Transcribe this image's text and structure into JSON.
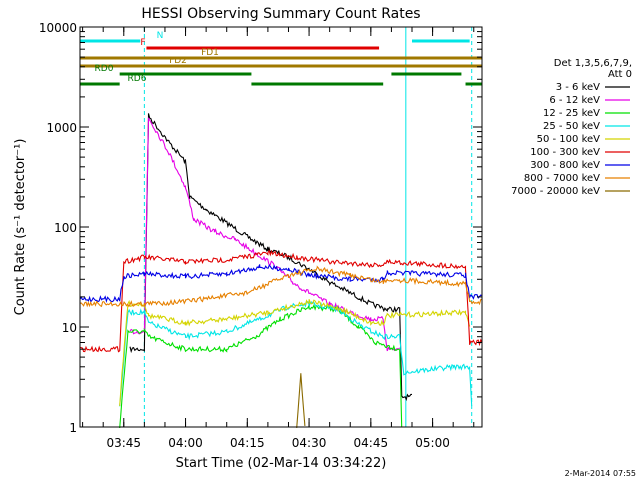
{
  "chart_data": {
    "type": "line",
    "title": "HESSI Observing Summary Count Rates",
    "ylabel": "Count Rate (s⁻¹ detector⁻¹)",
    "xlabel": "Start Time (02-Mar-14 03:34:22)",
    "y_scale": "log",
    "ylim": [
      1,
      10000
    ],
    "xlim": [
      "03:34:22",
      "05:12:00"
    ],
    "y_ticks": [
      {
        "v": 1,
        "label": "1"
      },
      {
        "v": 10,
        "label": "10"
      },
      {
        "v": 100,
        "label": "100"
      },
      {
        "v": 1000,
        "label": "1000"
      },
      {
        "v": 10000,
        "label": "10000"
      }
    ],
    "x_ticks": [
      {
        "t": "03:45",
        "label": "03:45"
      },
      {
        "t": "04:00",
        "label": "04:00"
      },
      {
        "t": "04:15",
        "label": "04:15"
      },
      {
        "t": "04:30",
        "label": "04:30"
      },
      {
        "t": "04:45",
        "label": "04:45"
      },
      {
        "t": "05:00",
        "label": "05:00"
      }
    ],
    "legend": {
      "header": [
        "Det 1,3,5,6,7,9,",
        "Att 0"
      ],
      "placement": "right",
      "entries": [
        {
          "label": "3 - 6 keV",
          "color": "#000000"
        },
        {
          "label": "6 - 12 keV",
          "color": "#e600e6"
        },
        {
          "label": "12 - 25 keV",
          "color": "#00e000"
        },
        {
          "label": "25 - 50 keV",
          "color": "#00e6e6"
        },
        {
          "label": "50 - 100 keV",
          "color": "#d4d400"
        },
        {
          "label": "100 - 300 keV",
          "color": "#e00000"
        },
        {
          "label": "300 - 800 keV",
          "color": "#0000e6"
        },
        {
          "label": "800 - 7000 keV",
          "color": "#e68000"
        },
        {
          "label": "7000 - 20000 keV",
          "color": "#8a6a00"
        }
      ]
    },
    "series": [
      {
        "name": "3 - 6 keV",
        "color": "#000000",
        "points": [
          [
            "03:46:30",
            6
          ],
          [
            "03:50:00",
            6
          ],
          [
            "03:51:00",
            1300
          ],
          [
            "03:56:00",
            700
          ],
          [
            "04:00:00",
            450
          ],
          [
            "04:01:00",
            200
          ],
          [
            "04:05:00",
            150
          ],
          [
            "04:10:00",
            110
          ],
          [
            "04:15:00",
            80
          ],
          [
            "04:20:00",
            60
          ],
          [
            "04:25:00",
            50
          ],
          [
            "04:30:00",
            38
          ],
          [
            "04:35:00",
            28
          ],
          [
            "04:40:00",
            22
          ],
          [
            "04:45:00",
            17
          ],
          [
            "04:49:00",
            15
          ],
          [
            "04:52:00",
            15
          ],
          [
            "04:52:30",
            2
          ],
          [
            "04:55:00",
            2
          ]
        ]
      },
      {
        "name": "6 - 12 keV",
        "color": "#e600e6",
        "points": [
          [
            "03:46:30",
            9
          ],
          [
            "03:50:00",
            9
          ],
          [
            "03:51:00",
            1250
          ],
          [
            "03:56:00",
            550
          ],
          [
            "04:00:00",
            250
          ],
          [
            "04:02:00",
            120
          ],
          [
            "04:07:00",
            90
          ],
          [
            "04:12:00",
            75
          ],
          [
            "04:17:00",
            55
          ],
          [
            "04:22:00",
            40
          ],
          [
            "04:26:00",
            28
          ],
          [
            "04:30:00",
            22
          ],
          [
            "04:35:00",
            17
          ],
          [
            "04:40:00",
            14
          ],
          [
            "04:45:00",
            12
          ],
          [
            "04:48:00",
            12
          ],
          [
            "04:49:00",
            6
          ],
          [
            "04:52:00",
            6
          ]
        ]
      },
      {
        "name": "12 - 25 keV",
        "color": "#00e000",
        "points": [
          [
            "03:44:00",
            1
          ],
          [
            "03:46:00",
            9
          ],
          [
            "03:50:00",
            9
          ],
          [
            "03:51:00",
            8
          ],
          [
            "04:00:00",
            6
          ],
          [
            "04:10:00",
            6
          ],
          [
            "04:17:00",
            8
          ],
          [
            "04:23:00",
            12
          ],
          [
            "04:30:00",
            16
          ],
          [
            "04:37:00",
            15
          ],
          [
            "04:42:00",
            10
          ],
          [
            "04:46:00",
            7
          ],
          [
            "04:52:00",
            6
          ],
          [
            "04:52:30",
            1
          ]
        ]
      },
      {
        "name": "25 - 50 keV",
        "color": "#00e6e6",
        "points": [
          [
            "03:44:00",
            1.6
          ],
          [
            "03:46:00",
            14
          ],
          [
            "03:50:00",
            14
          ],
          [
            "03:51:00",
            11
          ],
          [
            "04:00:00",
            8
          ],
          [
            "04:10:00",
            9
          ],
          [
            "04:18:00",
            12
          ],
          [
            "04:25:00",
            16
          ],
          [
            "04:30:00",
            17
          ],
          [
            "04:37:00",
            15
          ],
          [
            "04:43:00",
            10
          ],
          [
            "04:48:00",
            8
          ],
          [
            "04:52:00",
            8
          ],
          [
            "04:53:00",
            3.5
          ],
          [
            "05:05:00",
            4
          ],
          [
            "05:09:00",
            4
          ],
          [
            "05:09:30",
            1.6
          ]
        ]
      },
      {
        "name": "50 - 100 keV",
        "color": "#d4d400",
        "points": [
          [
            "03:44:00",
            1.7
          ],
          [
            "03:46:00",
            17
          ],
          [
            "03:50:00",
            17
          ],
          [
            "03:51:00",
            13
          ],
          [
            "04:00:00",
            11
          ],
          [
            "04:10:00",
            12
          ],
          [
            "04:20:00",
            14
          ],
          [
            "04:30:00",
            18
          ],
          [
            "04:38:00",
            15
          ],
          [
            "04:45:00",
            11
          ],
          [
            "04:48:00",
            11
          ],
          [
            "04:49:00",
            13
          ],
          [
            "05:08:00",
            14
          ],
          [
            "05:09:00",
            10
          ]
        ]
      },
      {
        "name": "100 - 300 keV",
        "color": "#e00000",
        "points": [
          [
            "03:34:22",
            6
          ],
          [
            "03:44:00",
            6
          ],
          [
            "03:45:00",
            45
          ],
          [
            "03:50:00",
            50
          ],
          [
            "04:00:00",
            45
          ],
          [
            "04:10:00",
            47
          ],
          [
            "04:20:00",
            55
          ],
          [
            "04:27:00",
            50
          ],
          [
            "04:35:00",
            45
          ],
          [
            "04:45:00",
            42
          ],
          [
            "04:48:00",
            42
          ],
          [
            "04:49:00",
            45
          ],
          [
            "05:08:00",
            40
          ],
          [
            "05:09:00",
            7
          ],
          [
            "05:12:00",
            7
          ]
        ]
      },
      {
        "name": "300 - 800 keV",
        "color": "#0000e6",
        "points": [
          [
            "03:34:22",
            19
          ],
          [
            "03:44:00",
            19
          ],
          [
            "03:45:00",
            32
          ],
          [
            "03:50:00",
            34
          ],
          [
            "04:00:00",
            32
          ],
          [
            "04:10:00",
            34
          ],
          [
            "04:18:00",
            40
          ],
          [
            "04:25:00",
            38
          ],
          [
            "04:30:00",
            33
          ],
          [
            "04:40:00",
            30
          ],
          [
            "04:48:00",
            30
          ],
          [
            "04:49:00",
            35
          ],
          [
            "05:08:00",
            33
          ],
          [
            "05:09:00",
            20
          ],
          [
            "05:12:00",
            20
          ]
        ]
      },
      {
        "name": "800 - 7000 keV",
        "color": "#e68000",
        "points": [
          [
            "03:34:22",
            17
          ],
          [
            "03:50:00",
            17
          ],
          [
            "04:00:00",
            18
          ],
          [
            "04:15:00",
            22
          ],
          [
            "04:25:00",
            33
          ],
          [
            "04:32:00",
            38
          ],
          [
            "04:40:00",
            33
          ],
          [
            "04:48:00",
            28
          ],
          [
            "04:49:00",
            30
          ],
          [
            "05:08:00",
            27
          ],
          [
            "05:09:00",
            18
          ],
          [
            "05:12:00",
            18
          ]
        ]
      },
      {
        "name": "7000 - 20000 keV",
        "color": "#8a6a00",
        "points": [
          [
            "04:27:00",
            1
          ],
          [
            "04:28:00",
            3.5
          ],
          [
            "04:29:00",
            1
          ]
        ]
      }
    ],
    "observing_flags": [
      {
        "label": "N",
        "color": "#00e6e6",
        "segments": [
          [
            "03:34:22",
            "03:49:00"
          ],
          [
            "04:55:00",
            "05:09:00"
          ]
        ]
      },
      {
        "label": "F",
        "color": "#e00000",
        "segments": [
          [
            "03:50:30",
            "04:47:00"
          ]
        ]
      },
      {
        "label": "FD1",
        "color": "#a07800",
        "segments": [
          [
            "03:34:22",
            "05:12:00"
          ]
        ]
      },
      {
        "label": "FD2",
        "color": "#a07800",
        "segments": [
          [
            "03:34:22",
            "05:12:00"
          ]
        ]
      },
      {
        "label": "RD0",
        "color": "#007800",
        "segments": [
          [
            "03:44:00",
            "04:16:00"
          ],
          [
            "04:50:00",
            "05:07:00"
          ]
        ]
      },
      {
        "label": "RD6",
        "color": "#007800",
        "segments": [
          [
            "03:34:22",
            "03:44:00"
          ],
          [
            "04:16:00",
            "04:48:00"
          ],
          [
            "05:08:00",
            "05:12:00"
          ]
        ]
      }
    ],
    "guide_lines": [
      {
        "t": "03:34:22",
        "color": "#00e6e6",
        "style": "solid"
      },
      {
        "t": "03:50:00",
        "color": "#00e6e6",
        "style": "dashed"
      },
      {
        "t": "04:53:30",
        "color": "#00e6e6",
        "style": "solid"
      },
      {
        "t": "05:09:30",
        "color": "#00e6e6",
        "style": "dashed"
      }
    ],
    "timestamp": "2-Mar-2014 07:55"
  }
}
